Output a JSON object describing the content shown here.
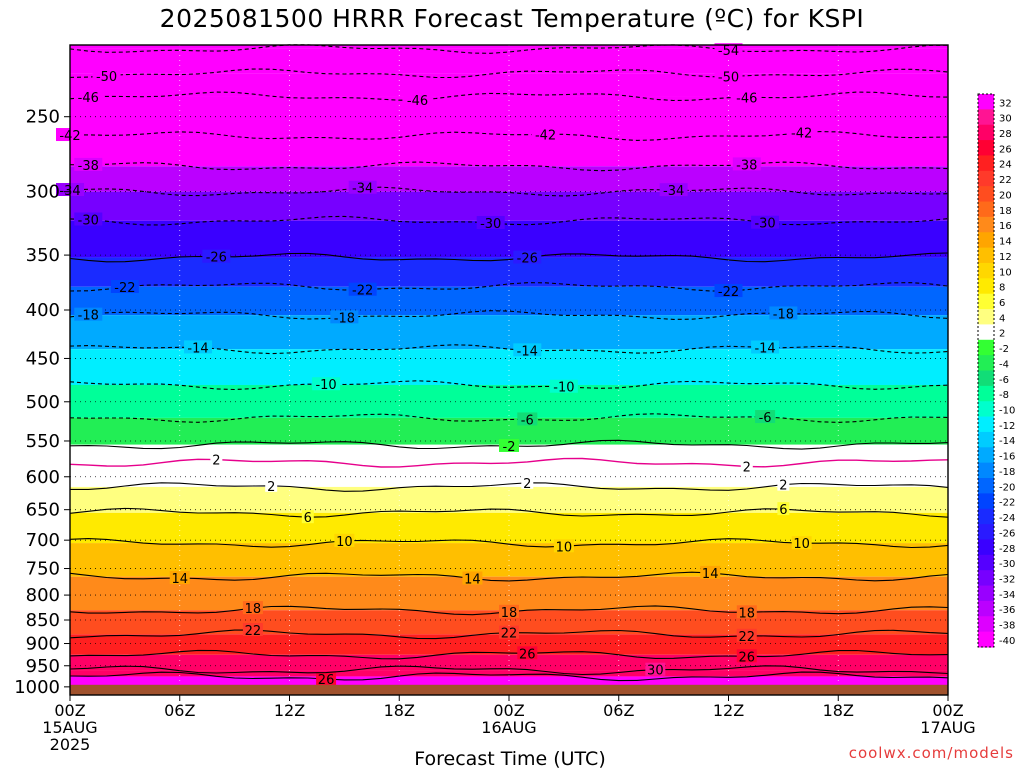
{
  "title": "2025081500 HRRR Forecast Temperature (ºC) for KSPI",
  "credit": "coolwx.com/models",
  "colors": {
    "ground": "#a0522d",
    "freezing_line": "#e6008c",
    "frame": "#000000"
  },
  "chart_data": {
    "type": "contour",
    "title": "2025081500 HRRR Forecast Temperature (ºC) for KSPI",
    "xlabel": "Forecast Time (UTC)",
    "ylabel": "",
    "x_hours": [
      0,
      48
    ],
    "xticks": [
      {
        "hour": 0,
        "lines": [
          "00Z",
          "15AUG",
          "2025"
        ]
      },
      {
        "hour": 6,
        "lines": [
          "06Z"
        ]
      },
      {
        "hour": 12,
        "lines": [
          "12Z"
        ]
      },
      {
        "hour": 18,
        "lines": [
          "18Z"
        ]
      },
      {
        "hour": 24,
        "lines": [
          "00Z",
          "16AUG"
        ]
      },
      {
        "hour": 30,
        "lines": [
          "06Z"
        ]
      },
      {
        "hour": 36,
        "lines": [
          "12Z"
        ]
      },
      {
        "hour": 42,
        "lines": [
          "18Z"
        ]
      },
      {
        "hour": 48,
        "lines": [
          "00Z",
          "17AUG"
        ]
      }
    ],
    "yticks_hpa": [
      250,
      300,
      350,
      400,
      450,
      500,
      550,
      600,
      650,
      700,
      750,
      800,
      850,
      900,
      950,
      1000
    ],
    "ylim_hpa": [
      210,
      1020
    ],
    "y_scale": "log-pressure",
    "surface_pressure_hpa": 995,
    "grid": true,
    "colorbar": {
      "labels": [
        32,
        30,
        28,
        26,
        24,
        22,
        20,
        18,
        16,
        14,
        12,
        10,
        8,
        6,
        4,
        2,
        -2,
        -4,
        -6,
        -8,
        -10,
        -12,
        -14,
        -16,
        -18,
        -20,
        -22,
        -24,
        -26,
        -28,
        -30,
        -32,
        -34,
        -36,
        -38,
        -40
      ],
      "colors": [
        "#ff00ff",
        "#ff1493",
        "#ff0066",
        "#ff0033",
        "#ff2020",
        "#ff3a2a",
        "#ff4d1f",
        "#ff6a1a",
        "#ff8a1a",
        "#ffa500",
        "#ffbf00",
        "#ffd700",
        "#ffea00",
        "#ffff33",
        "#ffff80",
        "#ffffff",
        "#33ff33",
        "#22ee55",
        "#11dd77",
        "#00ff99",
        "#00ffcc",
        "#00eeff",
        "#00ccff",
        "#00aaff",
        "#0088ff",
        "#0066ff",
        "#0044ff",
        "#1a2bff",
        "#2a1aff",
        "#3a00ff",
        "#5500ff",
        "#7700ff",
        "#9900ff",
        "#bb00ff",
        "#dd00ff",
        "#ff00ff"
      ]
    },
    "isotherms": [
      {
        "temp": -54,
        "p": 212,
        "labels": [
          {
            "hour": 36,
            "text": "-54"
          }
        ],
        "dashed": true
      },
      {
        "temp": -50,
        "p": 225,
        "labels": [
          {
            "hour": 2,
            "text": "-50"
          },
          {
            "hour": 36,
            "text": "-50"
          }
        ],
        "dashed": true
      },
      {
        "temp": -46,
        "p": 238,
        "labels": [
          {
            "hour": 1,
            "text": "-46"
          },
          {
            "hour": 19,
            "text": "-46"
          },
          {
            "hour": 37,
            "text": "-46"
          }
        ],
        "dashed": true
      },
      {
        "temp": -42,
        "p": 262,
        "labels": [
          {
            "hour": 0,
            "text": "-42"
          },
          {
            "hour": 26,
            "text": "-42"
          },
          {
            "hour": 40,
            "text": "-42"
          }
        ],
        "dashed": true
      },
      {
        "temp": -38,
        "p": 282,
        "labels": [
          {
            "hour": 1,
            "text": "-38"
          },
          {
            "hour": 37,
            "text": "-38"
          }
        ],
        "dashed": true
      },
      {
        "temp": -34,
        "p": 300,
        "labels": [
          {
            "hour": 0,
            "text": "-34"
          },
          {
            "hour": 16,
            "text": "-34"
          },
          {
            "hour": 33,
            "text": "-34"
          }
        ],
        "dashed": true
      },
      {
        "temp": -30,
        "p": 322,
        "labels": [
          {
            "hour": 1,
            "text": "-30"
          },
          {
            "hour": 23,
            "text": "-30"
          },
          {
            "hour": 38,
            "text": "-30"
          }
        ],
        "dashed": true
      },
      {
        "temp": -26,
        "p": 352,
        "labels": [
          {
            "hour": 8,
            "text": "-26"
          },
          {
            "hour": 25,
            "text": "-26"
          }
        ],
        "dashed": false
      },
      {
        "temp": -22,
        "p": 378,
        "labels": [
          {
            "hour": 3,
            "text": "-22"
          },
          {
            "hour": 16,
            "text": "-22"
          },
          {
            "hour": 36,
            "text": "-22"
          }
        ],
        "dashed": true
      },
      {
        "temp": -18,
        "p": 405,
        "labels": [
          {
            "hour": 1,
            "text": "-18"
          },
          {
            "hour": 15,
            "text": "-18"
          },
          {
            "hour": 39,
            "text": "-18"
          }
        ],
        "dashed": true
      },
      {
        "temp": -14,
        "p": 440,
        "labels": [
          {
            "hour": 7,
            "text": "-14"
          },
          {
            "hour": 25,
            "text": "-14"
          },
          {
            "hour": 38,
            "text": "-14"
          }
        ],
        "dashed": true
      },
      {
        "temp": -10,
        "p": 480,
        "labels": [
          {
            "hour": 14,
            "text": "-10"
          },
          {
            "hour": 27,
            "text": "-10"
          }
        ],
        "dashed": true
      },
      {
        "temp": -6,
        "p": 520,
        "labels": [
          {
            "hour": 25,
            "text": "-6"
          },
          {
            "hour": 38,
            "text": "-6"
          }
        ],
        "dashed": true
      },
      {
        "temp": -2,
        "p": 555,
        "labels": [
          {
            "hour": 24,
            "text": "-2"
          }
        ],
        "dashed": false
      },
      {
        "temp": 2,
        "p": 580,
        "labels": [
          {
            "hour": 8,
            "text": "2"
          },
          {
            "hour": 37,
            "text": "2"
          }
        ],
        "dashed": true,
        "freezing": true
      },
      {
        "temp": 2,
        "p": 615,
        "labels": [
          {
            "hour": 11,
            "text": "2"
          },
          {
            "hour": 25,
            "text": "2"
          },
          {
            "hour": 39,
            "text": "2"
          }
        ],
        "dashed": false
      },
      {
        "temp": 6,
        "p": 655,
        "labels": [
          {
            "hour": 13,
            "text": "6"
          },
          {
            "hour": 39,
            "text": "6"
          }
        ],
        "dashed": false
      },
      {
        "temp": 10,
        "p": 705,
        "labels": [
          {
            "hour": 15,
            "text": "10"
          },
          {
            "hour": 27,
            "text": "10"
          },
          {
            "hour": 40,
            "text": "10"
          }
        ],
        "dashed": false
      },
      {
        "temp": 14,
        "p": 765,
        "labels": [
          {
            "hour": 6,
            "text": "14"
          },
          {
            "hour": 22,
            "text": "14"
          },
          {
            "hour": 35,
            "text": "14"
          }
        ],
        "dashed": false
      },
      {
        "temp": 18,
        "p": 830,
        "labels": [
          {
            "hour": 10,
            "text": "18"
          },
          {
            "hour": 24,
            "text": "18"
          },
          {
            "hour": 37,
            "text": "18"
          }
        ],
        "dashed": false
      },
      {
        "temp": 22,
        "p": 880,
        "labels": [
          {
            "hour": 10,
            "text": "22"
          },
          {
            "hour": 24,
            "text": "22"
          },
          {
            "hour": 37,
            "text": "22"
          }
        ],
        "dashed": false
      },
      {
        "temp": 26,
        "p": 925,
        "labels": [
          {
            "hour": 25,
            "text": "26"
          },
          {
            "hour": 37,
            "text": "26"
          }
        ],
        "dashed": false
      },
      {
        "temp": 26,
        "p": 975,
        "labels": [
          {
            "hour": 14,
            "text": "26"
          }
        ],
        "dashed": false
      },
      {
        "temp": 30,
        "p": 960,
        "labels": [
          {
            "hour": 32,
            "text": "30"
          }
        ],
        "dashed": false
      }
    ]
  }
}
